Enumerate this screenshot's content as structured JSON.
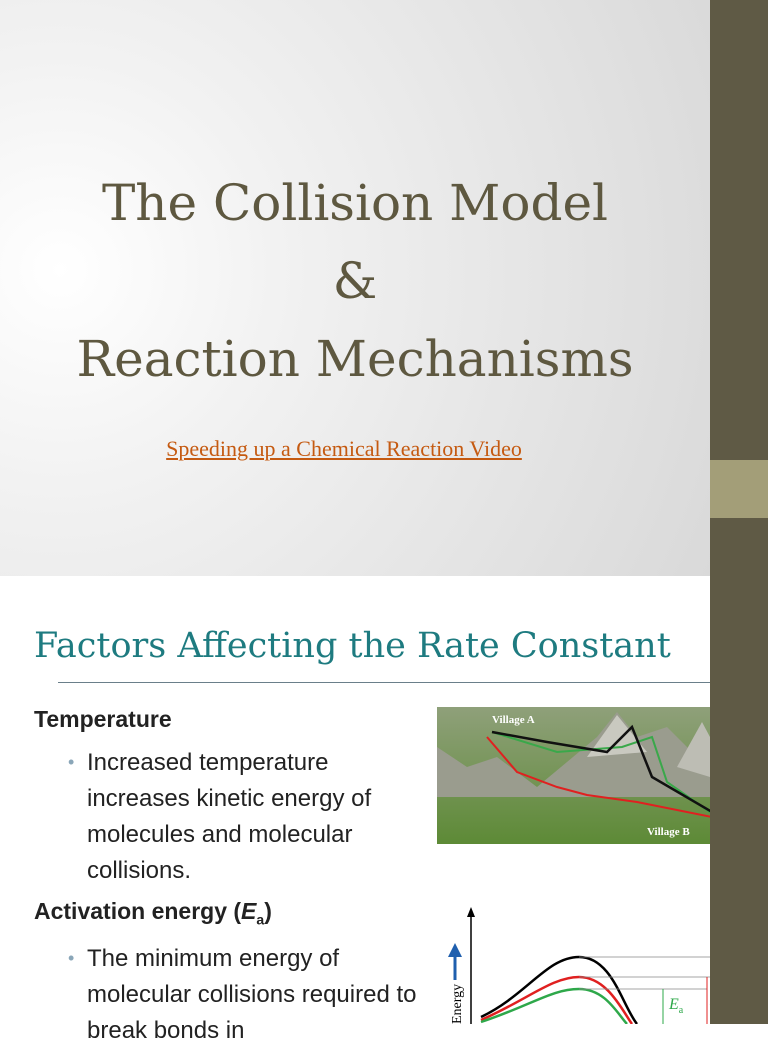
{
  "slide_1": {
    "title_lines": [
      "The Collision Model",
      "&",
      "Reaction Mechanisms"
    ],
    "link": "Speeding up a Chemical Reaction Video"
  },
  "slide_2": {
    "title": "Factors Affecting the Rate Constant",
    "sections": [
      {
        "heading": "Temperature",
        "bullets": [
          "Increased temperature increases kinetic energy of molecules and molecular collisions."
        ]
      },
      {
        "heading": "Activation energy (",
        "heading_symbol": "E",
        "heading_subscript": "a",
        "heading_end": ")",
        "bullets": [
          "The minimum energy of molecular collisions required to break bonds in"
        ]
      }
    ],
    "figure_1": {
      "labels": [
        "Village A",
        "Village B"
      ]
    },
    "figure_2": {
      "axis_label": "Energy",
      "symbol": "E",
      "subscript": "a"
    }
  }
}
